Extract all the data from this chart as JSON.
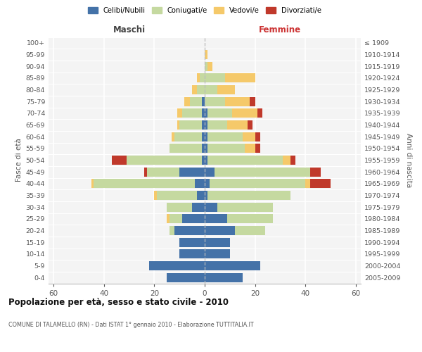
{
  "age_groups": [
    "0-4",
    "5-9",
    "10-14",
    "15-19",
    "20-24",
    "25-29",
    "30-34",
    "35-39",
    "40-44",
    "45-49",
    "50-54",
    "55-59",
    "60-64",
    "65-69",
    "70-74",
    "75-79",
    "80-84",
    "85-89",
    "90-94",
    "95-99",
    "100+"
  ],
  "birth_years": [
    "2005-2009",
    "2000-2004",
    "1995-1999",
    "1990-1994",
    "1985-1989",
    "1980-1984",
    "1975-1979",
    "1970-1974",
    "1965-1969",
    "1960-1964",
    "1955-1959",
    "1950-1954",
    "1945-1949",
    "1940-1944",
    "1935-1939",
    "1930-1934",
    "1925-1929",
    "1920-1924",
    "1915-1919",
    "1910-1914",
    "≤ 1909"
  ],
  "colors": {
    "celibi": "#4472a8",
    "coniugati": "#c5d9a0",
    "vedovi": "#f5c96a",
    "divorziati": "#c0392b"
  },
  "male_celibi": [
    15,
    22,
    10,
    10,
    12,
    9,
    5,
    3,
    4,
    10,
    1,
    1,
    1,
    1,
    1,
    1,
    0,
    0,
    0,
    0,
    0
  ],
  "male_coniugati": [
    0,
    0,
    0,
    0,
    2,
    5,
    10,
    16,
    40,
    13,
    30,
    13,
    11,
    9,
    8,
    5,
    3,
    2,
    0,
    0,
    0
  ],
  "male_vedovi": [
    0,
    0,
    0,
    0,
    0,
    1,
    0,
    1,
    1,
    0,
    0,
    0,
    1,
    1,
    2,
    2,
    2,
    1,
    0,
    0,
    0
  ],
  "male_divorziati": [
    0,
    0,
    0,
    0,
    0,
    0,
    0,
    0,
    0,
    1,
    6,
    0,
    0,
    0,
    0,
    0,
    0,
    0,
    0,
    0,
    0
  ],
  "female_nubili": [
    15,
    22,
    10,
    10,
    12,
    9,
    5,
    1,
    2,
    4,
    1,
    1,
    1,
    1,
    1,
    0,
    0,
    0,
    0,
    0,
    0
  ],
  "female_coniugate": [
    0,
    0,
    0,
    0,
    12,
    18,
    22,
    33,
    38,
    38,
    30,
    15,
    14,
    8,
    10,
    8,
    5,
    8,
    1,
    0,
    0
  ],
  "female_vedove": [
    0,
    0,
    0,
    0,
    0,
    0,
    0,
    0,
    2,
    0,
    3,
    4,
    5,
    8,
    10,
    10,
    7,
    12,
    2,
    1,
    0
  ],
  "female_divorziate": [
    0,
    0,
    0,
    0,
    0,
    0,
    0,
    0,
    8,
    4,
    2,
    2,
    2,
    2,
    2,
    2,
    0,
    0,
    0,
    0,
    0
  ],
  "xlim": 62,
  "title": "Popolazione per età, sesso e stato civile - 2010",
  "subtitle": "COMUNE DI TALAMELLO (RN) - Dati ISTAT 1° gennaio 2010 - Elaborazione TUTTITALIA.IT",
  "ylabel_left": "Fasce di età",
  "ylabel_right": "Anni di nascita",
  "xlabel_left": "Maschi",
  "xlabel_right": "Femmine",
  "legend_labels": [
    "Celibi/Nubili",
    "Coniugati/e",
    "Vedovi/e",
    "Divorziati/e"
  ],
  "bg_color": "#f4f4f4",
  "fig_bg": "#ffffff",
  "grid_color": "#dddddd"
}
